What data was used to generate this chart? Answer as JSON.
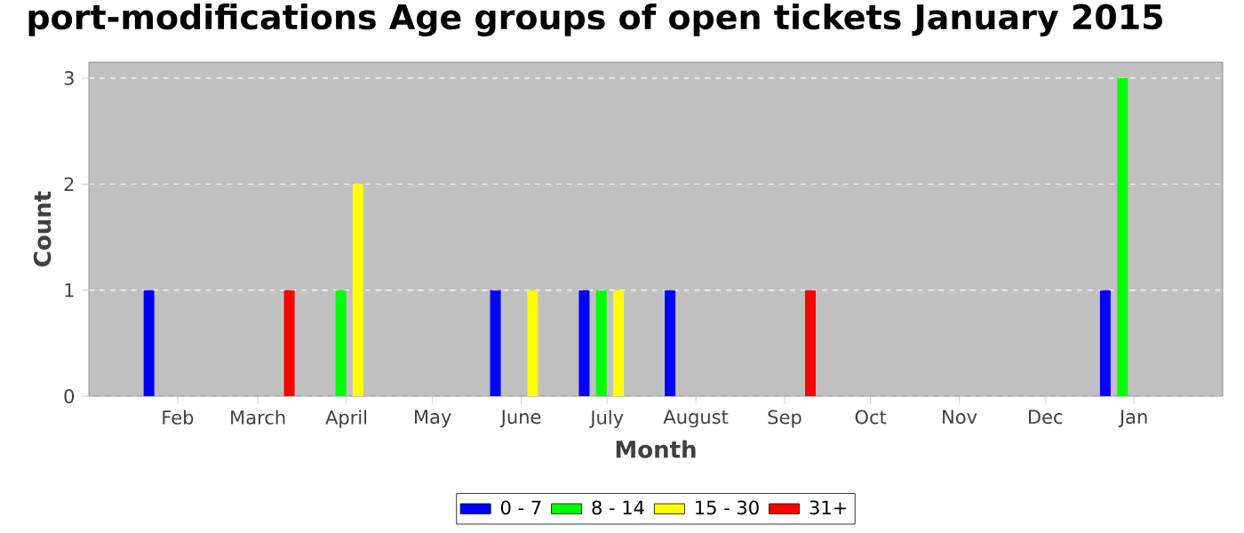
{
  "chart_data": {
    "type": "bar",
    "title": "port-modifications Age groups of open tickets January 2015",
    "xlabel": "Month",
    "ylabel": "Count",
    "xlim": [
      "2014-01-01",
      "2015-02-01"
    ],
    "xticks": [
      {
        "value": "2014-02-01",
        "label": "Feb"
      },
      {
        "value": "2014-03-01",
        "label": "March"
      },
      {
        "value": "2014-04-01",
        "label": "April"
      },
      {
        "value": "2014-05-01",
        "label": "May"
      },
      {
        "value": "2014-06-01",
        "label": "June"
      },
      {
        "value": "2014-07-01",
        "label": "July"
      },
      {
        "value": "2014-08-01",
        "label": "August"
      },
      {
        "value": "2014-09-01",
        "label": "Sep"
      },
      {
        "value": "2014-10-01",
        "label": "Oct"
      },
      {
        "value": "2014-11-01",
        "label": "Nov"
      },
      {
        "value": "2014-12-01",
        "label": "Dec"
      },
      {
        "value": "2015-01-01",
        "label": "Jan"
      }
    ],
    "ylim": [
      0,
      3.15
    ],
    "yticks": [
      0,
      1,
      2,
      3
    ],
    "grid": "y",
    "legend": "bottom",
    "series": [
      {
        "name": "0 - 7",
        "color": "#0000ff",
        "x": [
          "2014-01-22",
          "2014-05-23",
          "2014-06-23",
          "2014-07-23",
          "2014-12-22"
        ],
        "values": [
          1,
          1,
          1,
          1,
          1
        ]
      },
      {
        "name": "8 - 14",
        "color": "#00ff00",
        "x": [
          "2014-03-30",
          "2014-06-29",
          "2014-12-28"
        ],
        "values": [
          1,
          1,
          3
        ]
      },
      {
        "name": "15 - 30",
        "color": "#ffff00",
        "x": [
          "2014-04-05",
          "2014-06-05",
          "2014-07-05"
        ],
        "values": [
          2,
          1,
          1
        ]
      },
      {
        "name": "31+",
        "color": "#ff0000",
        "x": [
          "2014-03-12",
          "2014-09-10"
        ],
        "values": [
          1,
          1
        ]
      }
    ]
  }
}
